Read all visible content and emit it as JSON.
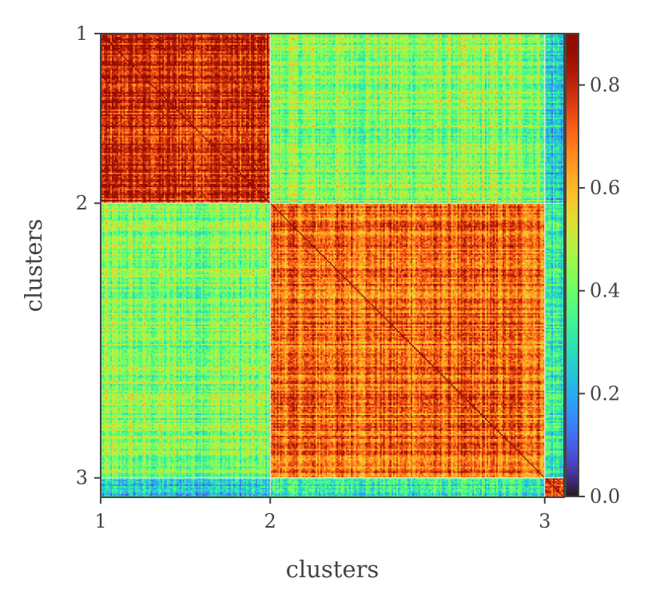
{
  "chart_data": {
    "type": "heatmap",
    "xlabel": "clusters",
    "ylabel": "clusters",
    "x_tick_labels": [
      "1",
      "2",
      "3"
    ],
    "y_tick_labels": [
      "1",
      "2",
      "3"
    ],
    "cluster_sizes": [
      105,
      170,
      12
    ],
    "block_mean_similarity": [
      [
        0.78,
        0.42,
        0.25
      ],
      [
        0.42,
        0.7,
        0.32
      ],
      [
        0.25,
        0.32,
        0.75
      ]
    ],
    "diagonal_value": 1.0,
    "colorbar": {
      "colormap": "turbo",
      "range": [
        0.0,
        0.9
      ],
      "tick_labels": [
        "0.0",
        "0.2",
        "0.4",
        "0.6",
        "0.8"
      ],
      "tick_values": [
        0.0,
        0.2,
        0.4,
        0.6,
        0.8
      ]
    }
  }
}
